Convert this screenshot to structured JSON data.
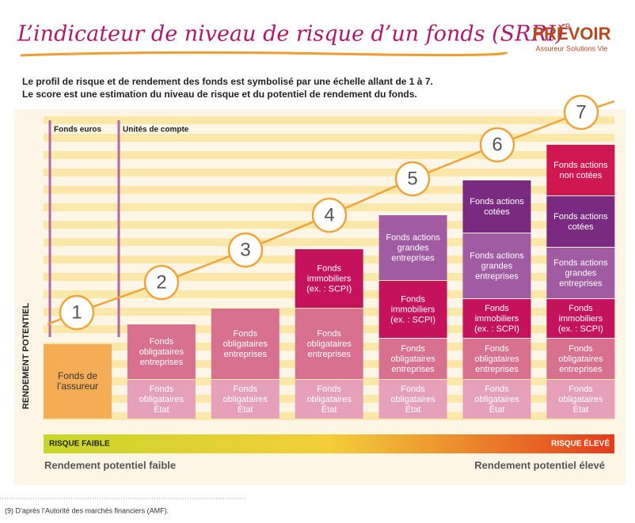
{
  "header": {
    "title": "L’indicateur de niveau de risque d’un fonds (SRRI)",
    "footnote_mark": "9",
    "logo": "PRÉVOIR",
    "logo_tagline": "Assureur Solutions Vie"
  },
  "intro": [
    "Le profil de risque et de rendement des fonds est symbolisé par une échelle allant de 1 à 7.",
    "Le score est une estimation du niveau de risque et du potentiel de rendement du fonds."
  ],
  "diagram": {
    "y_axis_label": "RENDEMENT POTENTIEL",
    "group_labels": [
      "Fonds euros",
      "Unités de compte"
    ],
    "levels": [
      "1",
      "2",
      "3",
      "4",
      "5",
      "6",
      "7"
    ],
    "columns": [
      {
        "segments": [
          {
            "lines": [
              "Fonds de",
              "l’assureur"
            ],
            "color": "#f5ad55"
          }
        ]
      },
      {
        "segments": [
          {
            "lines": [
              "Fonds",
              "obligataires",
              "État"
            ],
            "color": "#e6a0ba"
          },
          {
            "lines": [
              "Fonds",
              "obligataires",
              "entreprises"
            ],
            "color": "#d7718f"
          }
        ]
      },
      {
        "segments": [
          {
            "lines": [
              "Fonds",
              "obligataires",
              "État"
            ],
            "color": "#e6a0ba"
          },
          {
            "lines": [
              "Fonds",
              "obligataires",
              "entreprises"
            ],
            "color": "#d7718f"
          }
        ]
      },
      {
        "segments": [
          {
            "lines": [
              "Fonds",
              "obligataires",
              "État"
            ],
            "color": "#e6a0ba"
          },
          {
            "lines": [
              "Fonds",
              "obligataires",
              "entreprises"
            ],
            "color": "#d7718f"
          },
          {
            "lines": [
              "Fonds",
              "immobiliers",
              "(ex. : SCPI)"
            ],
            "color": "#c4135c"
          }
        ]
      },
      {
        "segments": [
          {
            "lines": [
              "Fonds",
              "obligataires",
              "État"
            ],
            "color": "#e6a0ba"
          },
          {
            "lines": [
              "Fonds",
              "obligataires",
              "entreprises"
            ],
            "color": "#d7718f"
          },
          {
            "lines": [
              "Fonds",
              "immobiliers",
              "(ex. : SCPI)"
            ],
            "color": "#c4135c"
          },
          {
            "lines": [
              "Fonds actions",
              "grandes",
              "entreprises"
            ],
            "color": "#a15ba3"
          }
        ]
      },
      {
        "segments": [
          {
            "lines": [
              "Fonds",
              "obligataires",
              "État"
            ],
            "color": "#e6a0ba"
          },
          {
            "lines": [
              "Fonds",
              "obligataires",
              "entreprises"
            ],
            "color": "#d7718f"
          },
          {
            "lines": [
              "Fonds",
              "immobiliers",
              "(ex. : SCPI)"
            ],
            "color": "#c4135c"
          },
          {
            "lines": [
              "Fonds actions",
              "grandes",
              "entreprises"
            ],
            "color": "#a15ba3"
          },
          {
            "lines": [
              "Fonds actions",
              "cotées"
            ],
            "color": "#7a2a80"
          }
        ]
      },
      {
        "segments": [
          {
            "lines": [
              "Fonds",
              "obligataires",
              "État"
            ],
            "color": "#e6a0ba"
          },
          {
            "lines": [
              "Fonds",
              "obligataires",
              "entreprises"
            ],
            "color": "#d7718f"
          },
          {
            "lines": [
              "Fonds",
              "immobiliers",
              "(ex. : SCPI)"
            ],
            "color": "#c4135c"
          },
          {
            "lines": [
              "Fonds actions",
              "grandes",
              "entreprises"
            ],
            "color": "#a15ba3"
          },
          {
            "lines": [
              "Fonds actions",
              "cotées"
            ],
            "color": "#7a2a80"
          },
          {
            "lines": [
              "Fonds actions",
              "non cotées"
            ],
            "color": "#cf1752"
          }
        ]
      }
    ],
    "risk_low": "RISQUE FAIBLE",
    "risk_high": "RISQUE ÉLEVÉ",
    "return_low": "Rendement potentiel faible",
    "return_high": "Rendement potentiel élevé"
  },
  "footnote": "(9) D’après l’Autorité des marchés financiers (AMF)."
}
